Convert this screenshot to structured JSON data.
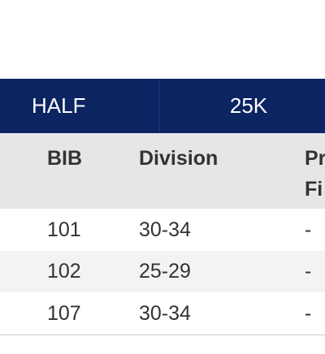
{
  "tabs": [
    {
      "label": "HALF"
    },
    {
      "label": "25K"
    }
  ],
  "table": {
    "headers": {
      "bib": "BIB",
      "division": "Division",
      "third": "Pr\nFi"
    },
    "rows": [
      {
        "bib": "101",
        "division": "30-34",
        "third": "-"
      },
      {
        "bib": "102",
        "division": "25-29",
        "third": "-"
      },
      {
        "bib": "107",
        "division": "30-34",
        "third": "-"
      }
    ]
  }
}
